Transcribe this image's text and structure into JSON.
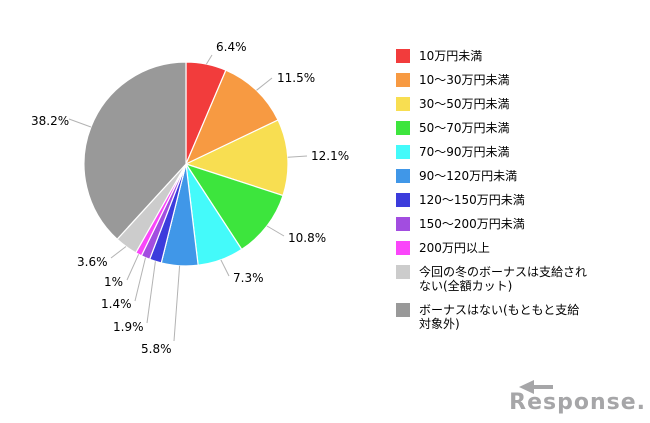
{
  "chart_data": {
    "type": "pie",
    "title": "",
    "legend_position": "right",
    "start_angle": "top",
    "direction": "clockwise",
    "total": 100,
    "slices": [
      {
        "label": "10万円未満",
        "value": 6.4,
        "display": "6.4%",
        "color": "#f23c3c"
      },
      {
        "label": "10〜30万円未満",
        "value": 11.5,
        "display": "11.5%",
        "color": "#f79a42"
      },
      {
        "label": "30〜50万円未満",
        "value": 12.1,
        "display": "12.1%",
        "color": "#f8de51"
      },
      {
        "label": "50〜70万円未満",
        "value": 10.8,
        "display": "10.8%",
        "color": "#3de53d"
      },
      {
        "label": "70〜90万円未満",
        "value": 7.3,
        "display": "7.3%",
        "color": "#44fafa"
      },
      {
        "label": "90〜120万円未満",
        "value": 5.8,
        "display": "5.8%",
        "color": "#4097e8"
      },
      {
        "label": "120〜150万円未満",
        "value": 1.9,
        "display": "1.9%",
        "color": "#3c3cdc"
      },
      {
        "label": "150〜200万円未満",
        "value": 1.4,
        "display": "1.4%",
        "color": "#a24de0"
      },
      {
        "label": "200万円以上",
        "value": 1.0,
        "display": "1%",
        "color": "#fa46fa"
      },
      {
        "label": "今回の冬のボーナスは支給されない(全額カット)",
        "value": 3.6,
        "display": "3.6%",
        "color": "#cccccc"
      },
      {
        "label": "ボーナスはない(もともと支給対象外)",
        "value": 38.2,
        "display": "38.2%",
        "color": "#999999"
      }
    ]
  },
  "branding": {
    "logo_text": "Response."
  },
  "colors": {
    "leader_line": "#b3b3b3",
    "slice_border": "#ffffff",
    "logo_gray": "#a6a6a8"
  }
}
